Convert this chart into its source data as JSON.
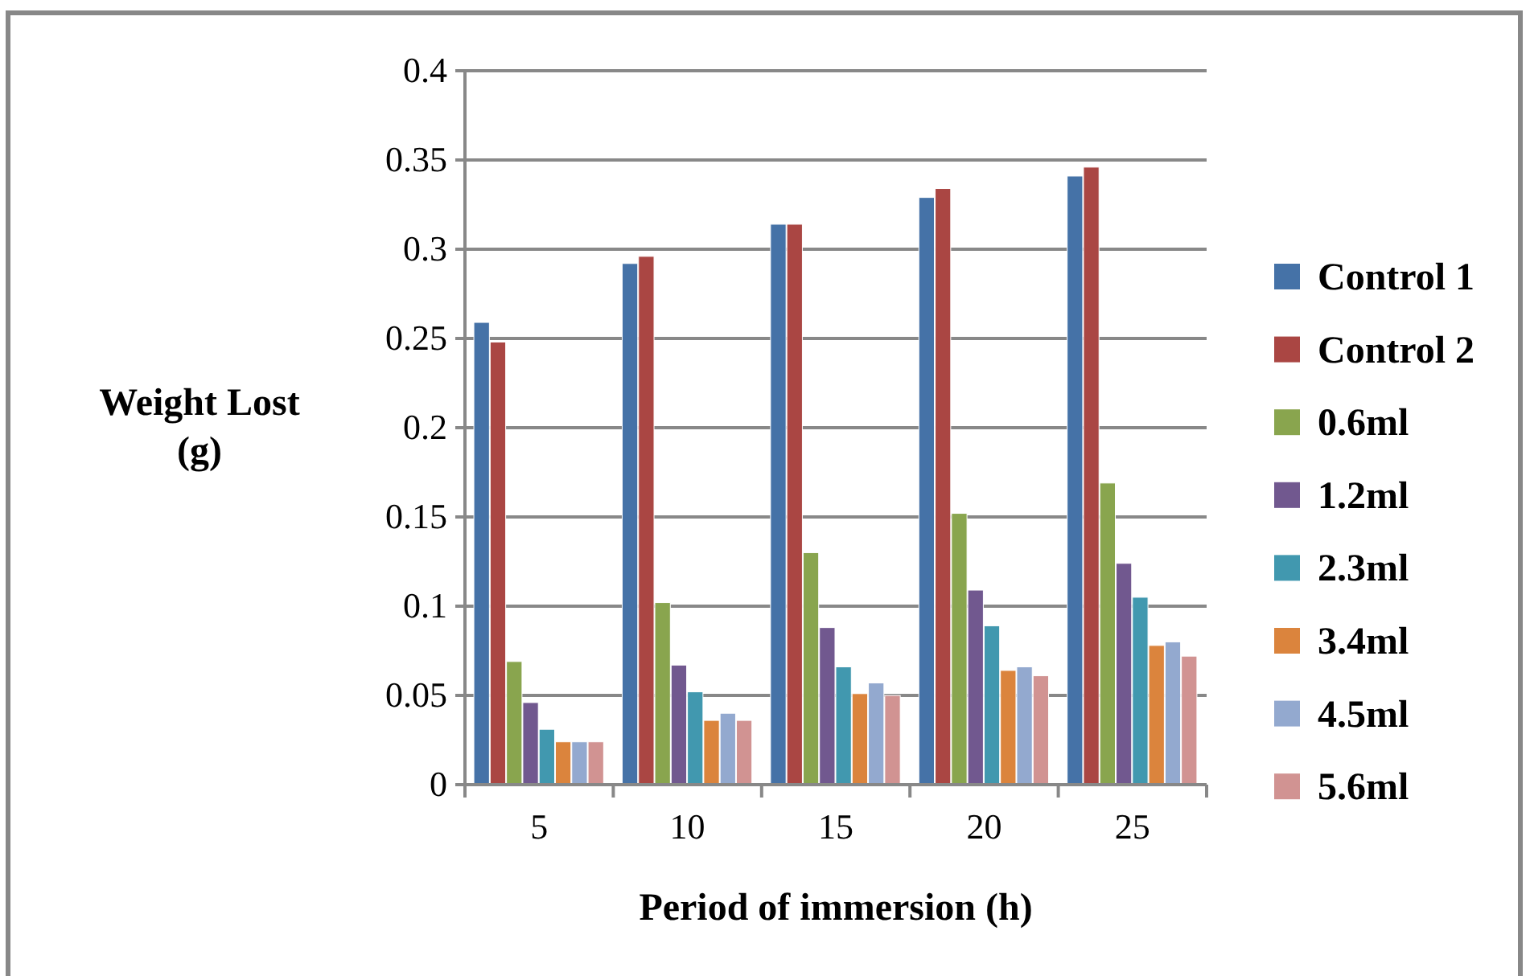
{
  "chart_data": {
    "type": "bar",
    "xlabel": "Period of immersion (h)",
    "ylabel": "Weight Lost (g)",
    "categories": [
      "5",
      "10",
      "15",
      "20",
      "25"
    ],
    "series": [
      {
        "name": "Control 1",
        "color": "#4572a7",
        "values": [
          0.259,
          0.292,
          0.314,
          0.329,
          0.341
        ]
      },
      {
        "name": "Control 2",
        "color": "#aa4643",
        "values": [
          0.248,
          0.296,
          0.314,
          0.334,
          0.346
        ]
      },
      {
        "name": "0.6ml",
        "color": "#89a54e",
        "values": [
          0.069,
          0.102,
          0.13,
          0.152,
          0.169
        ]
      },
      {
        "name": "1.2ml",
        "color": "#71588f",
        "values": [
          0.046,
          0.067,
          0.088,
          0.109,
          0.124
        ]
      },
      {
        "name": "2.3ml",
        "color": "#4198af",
        "values": [
          0.031,
          0.052,
          0.066,
          0.089,
          0.105
        ]
      },
      {
        "name": "3.4ml",
        "color": "#db843d",
        "values": [
          0.024,
          0.036,
          0.051,
          0.064,
          0.078
        ]
      },
      {
        "name": "4.5ml",
        "color": "#93a9cf",
        "values": [
          0.024,
          0.04,
          0.057,
          0.066,
          0.08
        ]
      },
      {
        "name": "5.6ml",
        "color": "#d19392",
        "values": [
          0.024,
          0.036,
          0.05,
          0.061,
          0.072
        ]
      }
    ],
    "ylim": [
      0,
      0.4
    ],
    "yticks": [
      0,
      0.05,
      0.1,
      0.15,
      0.2,
      0.25,
      0.3,
      0.35,
      0.4
    ],
    "grid": "y",
    "legend": "right"
  }
}
